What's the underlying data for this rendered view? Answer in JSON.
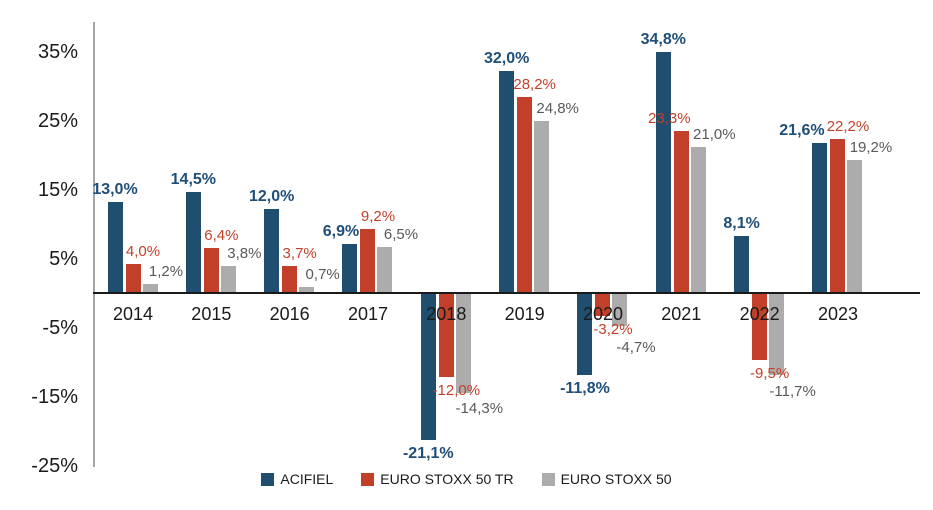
{
  "chart_data": {
    "type": "bar",
    "title": "",
    "xlabel": "",
    "ylabel": "",
    "categories": [
      "2014",
      "2015",
      "2016",
      "2017",
      "2018",
      "2019",
      "2020",
      "2021",
      "2022",
      "2023"
    ],
    "series": [
      {
        "name": "ACIFIEL",
        "color": "#1F4E6E",
        "label_color": "#1F4E79",
        "bold_labels": true,
        "values": [
          13.0,
          14.5,
          12.0,
          6.9,
          -21.1,
          32.0,
          -11.8,
          34.8,
          8.1,
          21.6
        ],
        "labels": [
          "13,0%",
          "14,5%",
          "12,0%",
          "6,9%",
          "-21,1%",
          "32,0%",
          "-11,8%",
          "34,8%",
          "8,1%",
          "21,6%"
        ]
      },
      {
        "name": "EURO STOXX 50 TR",
        "color": "#C2402A",
        "label_color": "#C2402A",
        "bold_labels": false,
        "values": [
          4.0,
          6.4,
          3.7,
          9.2,
          -12.0,
          28.2,
          -3.2,
          23.3,
          -9.5,
          22.2
        ],
        "labels": [
          "4,0%",
          "6,4%",
          "3,7%",
          "9,2%",
          "-12,0%",
          "28,2%",
          "-3,2%",
          "23,3%",
          "-9,5%",
          "22,2%"
        ]
      },
      {
        "name": "EURO STOXX 50",
        "color": "#ACACAC",
        "label_color": "#595959",
        "bold_labels": false,
        "values": [
          1.2,
          3.8,
          0.7,
          6.5,
          -14.3,
          24.8,
          -4.7,
          21.0,
          -11.7,
          19.2
        ],
        "labels": [
          "1,2%",
          "3,8%",
          "0,7%",
          "6,5%",
          "-14,3%",
          "24,8%",
          "-4,7%",
          "21,0%",
          "-11,7%",
          "19,2%"
        ]
      }
    ],
    "y_axis": {
      "ticks": [
        "35%",
        "25%",
        "15%",
        "5%",
        "-5%",
        "-15%",
        "-25%"
      ],
      "tick_values": [
        35,
        25,
        15,
        5,
        -5,
        -15,
        -25
      ],
      "ylim": [
        -25,
        40
      ],
      "grid": false
    },
    "legend": {
      "position": "bottom"
    },
    "background": "#FFFFFF",
    "axis_line_color": "#A6A6A6",
    "zero_line_color": "#1A1A1A"
  }
}
